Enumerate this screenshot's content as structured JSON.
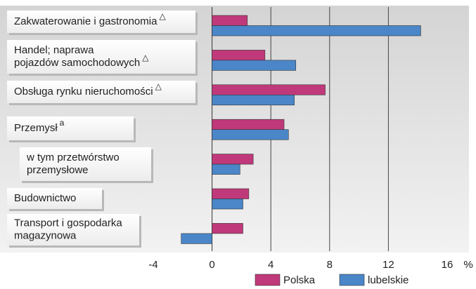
{
  "chart_data": {
    "type": "bar",
    "orientation": "horizontal",
    "categories": [
      [
        "Zakwaterowanie i gastronomia"
      ],
      [
        "Handel; naprawa",
        "pojazdów samochodowych"
      ],
      [
        "Obsługa rynku nieruchomości"
      ],
      [
        "Przemysł"
      ],
      [
        "w tym przetwórstwo",
        "przemysłowe"
      ],
      [
        "Budownictwo"
      ],
      [
        "Transport i gospodarka",
        "magazynowa"
      ]
    ],
    "category_notes": [
      "△",
      "△",
      "△",
      "a",
      null,
      null,
      null
    ],
    "series": [
      {
        "name": "Polska",
        "color": "#c0397a",
        "values": [
          2.4,
          3.6,
          7.7,
          4.9,
          2.8,
          2.5,
          2.1
        ]
      },
      {
        "name": "lubelskie",
        "color": "#4a86c8",
        "values": [
          14.2,
          5.7,
          5.6,
          5.2,
          1.9,
          2.1,
          -2.1
        ]
      }
    ],
    "xlim": [
      -4,
      16
    ],
    "xticks": [
      -4,
      0,
      4,
      8,
      12,
      16
    ],
    "x_unit": "%",
    "grid": true,
    "legend": "bottom"
  }
}
